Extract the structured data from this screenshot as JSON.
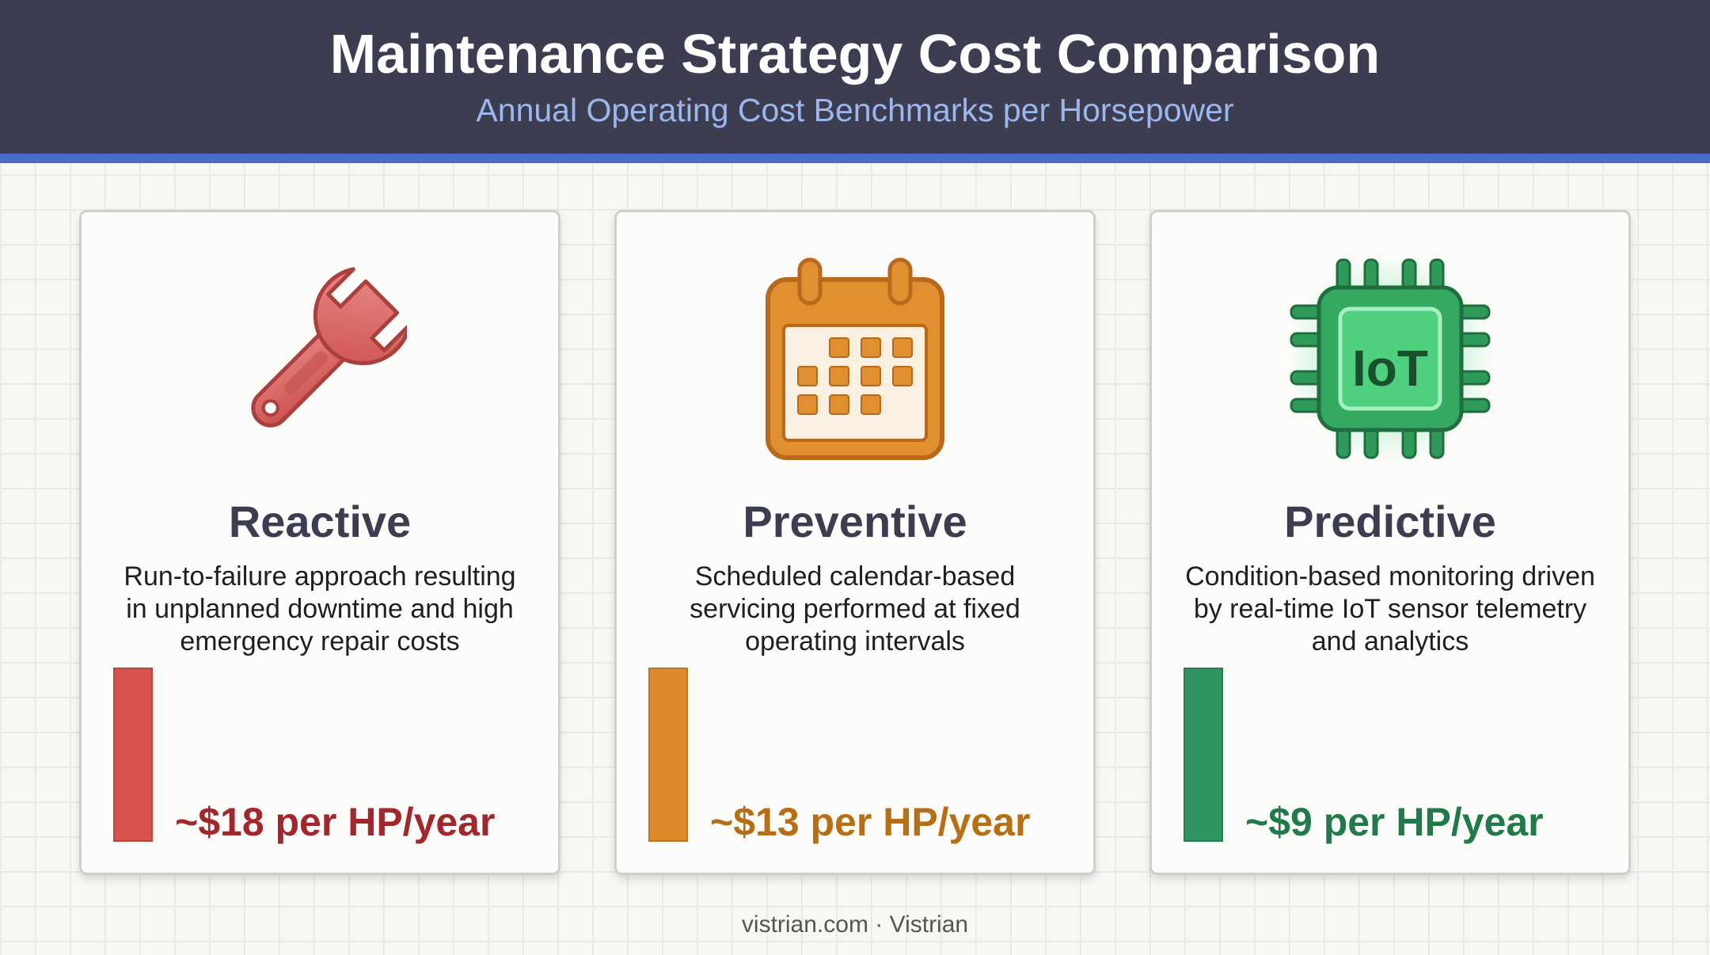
{
  "header": {
    "title": "Maintenance Strategy Cost Comparison",
    "subtitle": "Annual Operating Cost Benchmarks per Horsepower"
  },
  "colors": {
    "header_bg": "#3d3d52",
    "accent": "#4b6bc8",
    "reactive": "#d9534f",
    "reactive_text": "#a3262c",
    "preventive": "#dd8a2b",
    "preventive_text": "#b86e13",
    "predictive": "#2f9560",
    "predictive_text": "#217a49"
  },
  "cards": [
    {
      "icon": "wrench-icon",
      "title": "Reactive",
      "description": "Run-to-failure approach resulting in unplanned downtime and high emergency repair costs",
      "price": "~$18 per HP/year",
      "cost_value": 18
    },
    {
      "icon": "calendar-icon",
      "title": "Preventive",
      "description": "Scheduled calendar-based servicing performed at fixed operating intervals",
      "price": "~$13 per HP/year",
      "cost_value": 13
    },
    {
      "icon": "iot-chip-icon",
      "icon_label": "IoT",
      "title": "Predictive",
      "description": "Condition-based monitoring driven by real-time IoT sensor telemetry and analytics",
      "price": "~$9 per HP/year",
      "cost_value": 9
    }
  ],
  "footer": {
    "text": "vistrian.com · Vistrian"
  }
}
